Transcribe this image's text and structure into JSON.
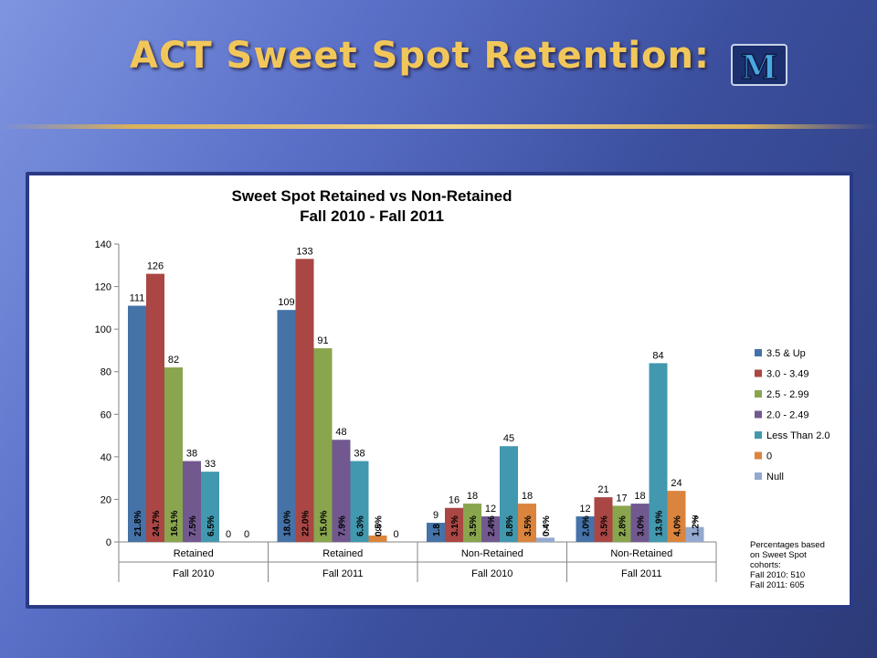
{
  "slide": {
    "title": "ACT Sweet Spot Retention:",
    "logo_letter": "M"
  },
  "colors": {
    "accent_gold": "#f2c75a",
    "background": "#3b4f9e"
  },
  "chart_data": {
    "type": "bar",
    "title": "Sweet Spot Retained vs Non-Retained",
    "subtitle": "Fall 2010 - Fall 2011",
    "ylim": [
      0,
      140
    ],
    "yticks": [
      0,
      20,
      40,
      60,
      80,
      100,
      120,
      140
    ],
    "grid": false,
    "legend_position": "right",
    "categories": [
      {
        "label": "Retained",
        "group": "Fall 2010"
      },
      {
        "label": "Retained",
        "group": "Fall 2011"
      },
      {
        "label": "Non-Retained",
        "group": "Fall 2010"
      },
      {
        "label": "Non-Retained",
        "group": "Fall 2011"
      }
    ],
    "series": [
      {
        "name": "3.5 & Up",
        "color": "#4572a7",
        "values": [
          111,
          109,
          9,
          12
        ],
        "pct_labels": [
          "21.8%",
          "18.0%",
          "1.8",
          "2.0%"
        ]
      },
      {
        "name": "3.0 - 3.49",
        "color": "#aa4643",
        "values": [
          126,
          133,
          16,
          21
        ],
        "pct_labels": [
          "24.7%",
          "22.0%",
          "3.1%",
          "3.5%"
        ]
      },
      {
        "name": "2.5 - 2.99",
        "color": "#89a54e",
        "values": [
          82,
          91,
          18,
          17
        ],
        "pct_labels": [
          "16.1%",
          "15.0%",
          "3.5%",
          "2.8%"
        ]
      },
      {
        "name": "2.0 - 2.49",
        "color": "#71588f",
        "values": [
          38,
          48,
          12,
          18
        ],
        "pct_labels": [
          "7.5%",
          "7.9%",
          "2.4%",
          "3.0%"
        ]
      },
      {
        "name": "Less Than 2.0",
        "color": "#4198af",
        "values": [
          33,
          38,
          45,
          84
        ],
        "pct_labels": [
          "6.5%",
          "6.3%",
          "8.8%",
          "13.9%"
        ]
      },
      {
        "name": "0",
        "color": "#db843d",
        "values": [
          0,
          3,
          18,
          24
        ],
        "pct_labels": [
          "",
          "0.5%",
          "3.5%",
          "4.0%"
        ]
      },
      {
        "name": "Null",
        "color": "#93a9cf",
        "values": [
          0,
          0,
          2,
          7
        ],
        "pct_labels": [
          "",
          "",
          "0.4%",
          "1.2%"
        ]
      }
    ],
    "note_lines": [
      "Percentages based",
      "on Sweet Spot",
      "cohorts:",
      "Fall 2010:  510",
      "Fall 2011:  605"
    ]
  }
}
